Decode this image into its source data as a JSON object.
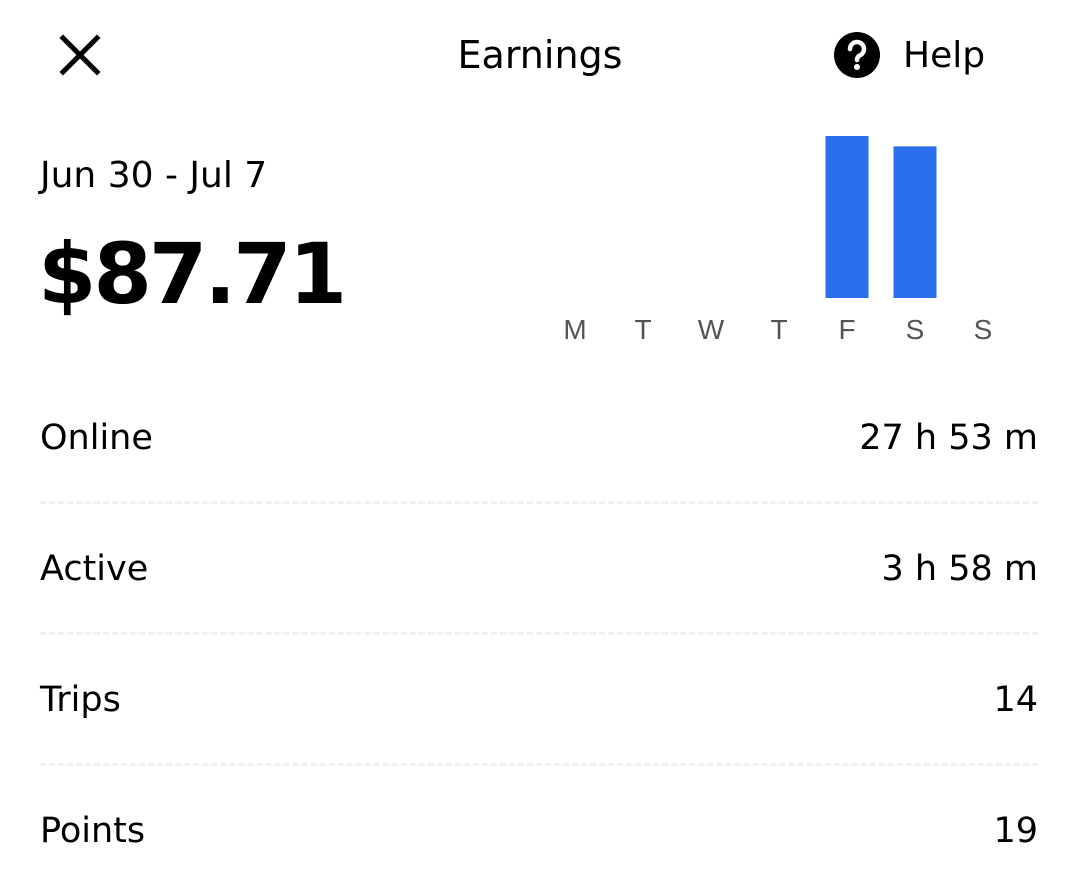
{
  "header": {
    "title": "Earnings",
    "help_label": "Help",
    "close_icon": "close-icon",
    "help_icon": "question-circle-icon"
  },
  "summary": {
    "date_range": "Jun 30 - Jul 7",
    "total": "$87.71"
  },
  "chart_data": {
    "type": "bar",
    "categories": [
      "M",
      "T",
      "W",
      "T",
      "F",
      "S",
      "S"
    ],
    "values": [
      0,
      0,
      0,
      0,
      45.3,
      42.4,
      0
    ],
    "bar_color": "#2a6eed",
    "grid": false
  },
  "stats": [
    {
      "label": "Online",
      "value": "27 h 53 m"
    },
    {
      "label": "Active",
      "value": "3 h 58 m"
    },
    {
      "label": "Trips",
      "value": "14"
    },
    {
      "label": "Points",
      "value": "19"
    }
  ]
}
